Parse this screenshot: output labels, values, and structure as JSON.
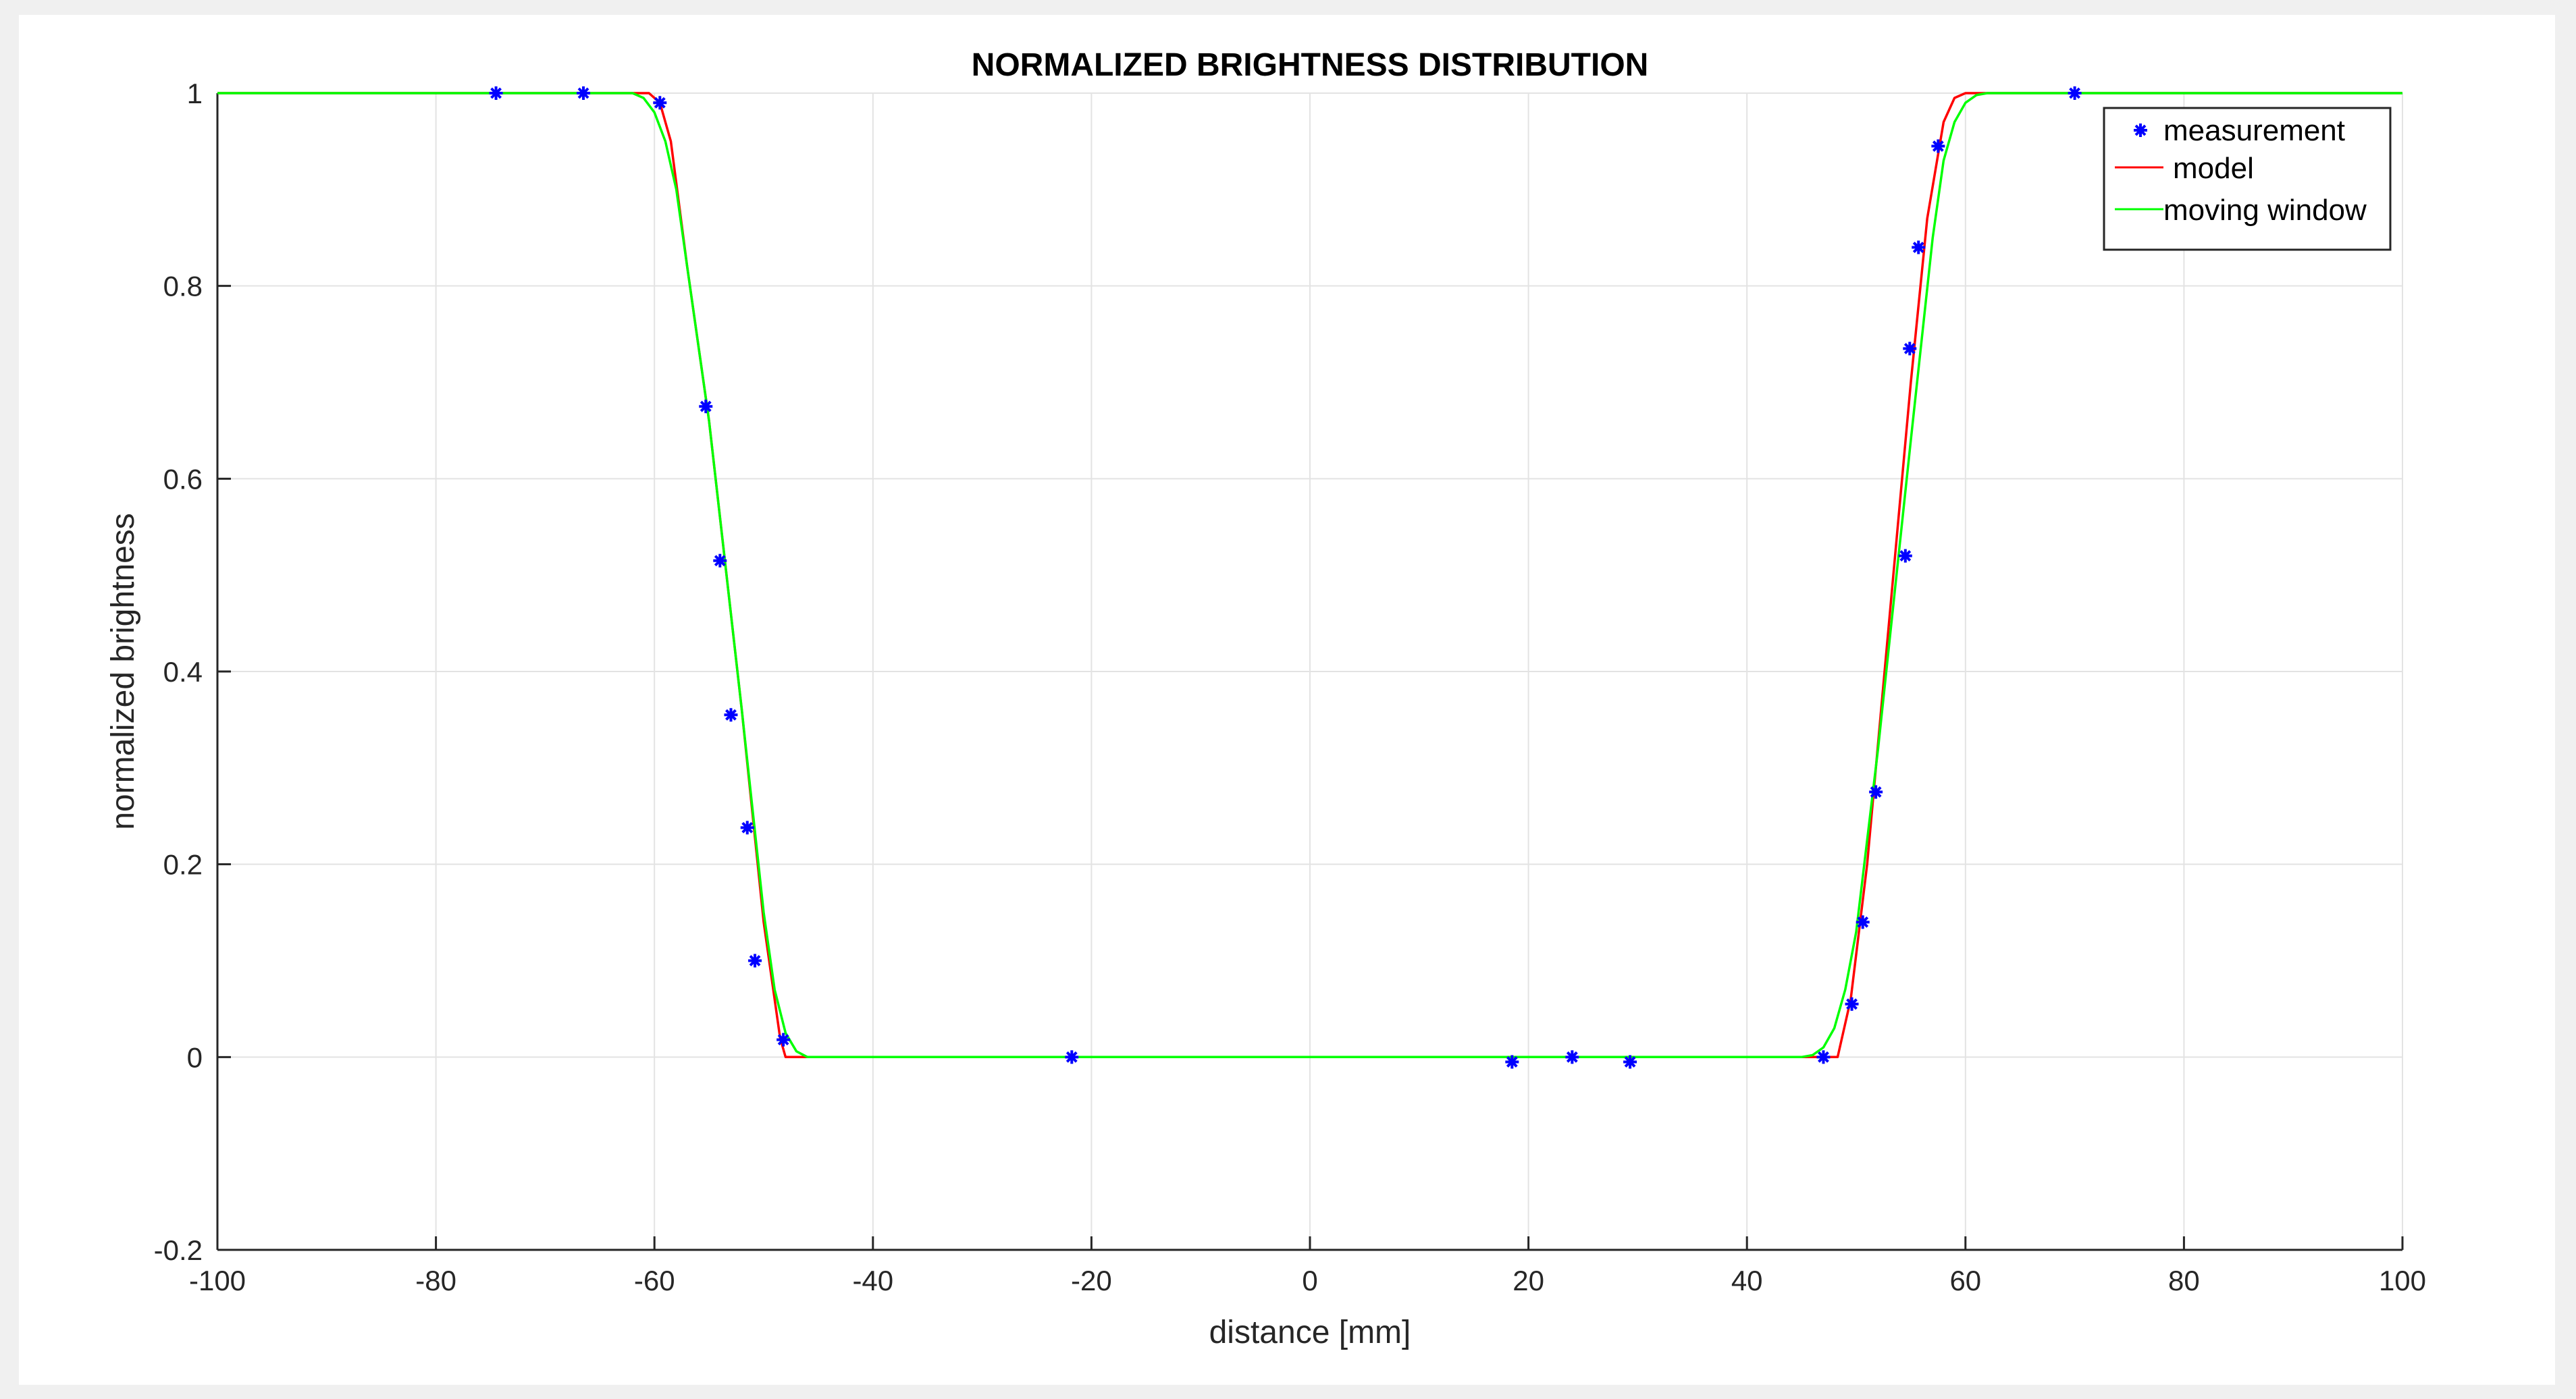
{
  "chart_data": {
    "type": "line",
    "title": "NORMALIZED BRIGHTNESS DISTRIBUTION",
    "xlabel": "distance [mm]",
    "ylabel": "normalized brightness",
    "xlim": [
      -100,
      100
    ],
    "ylim": [
      -0.2,
      1
    ],
    "xticks": [
      -100,
      -80,
      -60,
      -40,
      -20,
      0,
      20,
      40,
      60,
      80,
      100
    ],
    "yticks": [
      -0.2,
      0,
      0.2,
      0.4,
      0.6,
      0.8,
      1
    ],
    "xtick_labels": [
      "-100",
      "-80",
      "-60",
      "-40",
      "-20",
      "0",
      "20",
      "40",
      "60",
      "80",
      "100"
    ],
    "ytick_labels": [
      "-0.2",
      "0",
      "0.2",
      "0.4",
      "0.6",
      "0.8",
      "1"
    ],
    "grid": true,
    "legend_position": "top-right",
    "series": [
      {
        "name": "measurement",
        "kind": "scatter",
        "marker": "asterisk",
        "color": "#0000ff",
        "x": [
          -74.5,
          -66.5,
          -59.5,
          -55.3,
          -54,
          -53,
          -51.5,
          -50.8,
          -48.2,
          -21.8,
          18.5,
          24,
          29.3,
          47,
          49.6,
          50.6,
          51.8,
          54.5,
          54.9,
          55.7,
          57.5,
          70
        ],
        "y": [
          1,
          1,
          0.99,
          0.675,
          0.515,
          0.355,
          0.238,
          0.1,
          0.018,
          0,
          -0.005,
          0,
          -0.005,
          0,
          0.055,
          0.14,
          0.275,
          0.52,
          0.735,
          0.84,
          0.945,
          1
        ]
      },
      {
        "name": "model",
        "kind": "line",
        "color": "#ff0000",
        "x": [
          -100,
          -60.5,
          -59.5,
          -58.5,
          -57,
          -55,
          -52,
          -50,
          -48.5,
          -48,
          -47,
          47,
          48,
          48.3,
          49.5,
          51,
          53,
          55,
          56.5,
          58,
          59,
          60,
          100
        ],
        "y": [
          1,
          1,
          0.99,
          0.95,
          0.82,
          0.66,
          0.36,
          0.14,
          0.02,
          0,
          0,
          0,
          0,
          0,
          0.06,
          0.2,
          0.45,
          0.7,
          0.87,
          0.97,
          0.995,
          1,
          1
        ]
      },
      {
        "name": "moving window",
        "kind": "line",
        "color": "#00ff00",
        "x": [
          -100,
          -62,
          -61,
          -60,
          -59,
          -58,
          -57,
          -55,
          -52,
          -50,
          -49,
          -48,
          -47,
          -46,
          -45,
          45,
          46,
          47,
          48,
          49,
          50,
          52,
          55,
          57,
          58,
          59,
          60,
          61,
          62,
          100
        ],
        "y": [
          1,
          1,
          0.995,
          0.98,
          0.95,
          0.9,
          0.82,
          0.66,
          0.36,
          0.15,
          0.07,
          0.025,
          0.006,
          0,
          0,
          0,
          0.002,
          0.01,
          0.03,
          0.07,
          0.13,
          0.32,
          0.64,
          0.85,
          0.93,
          0.97,
          0.99,
          0.998,
          1,
          1
        ]
      }
    ]
  }
}
